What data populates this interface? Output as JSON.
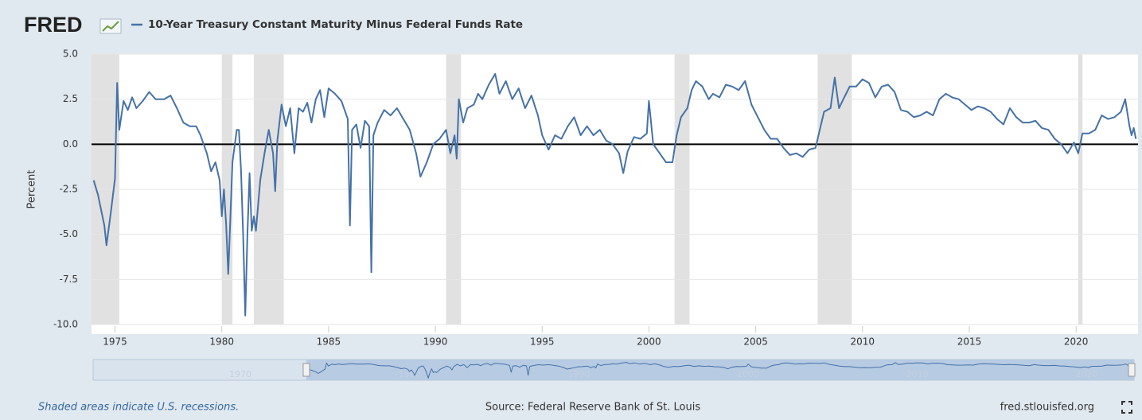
{
  "chart_data": {
    "type": "line",
    "brand": "FRED",
    "title": "10-Year Treasury Constant Maturity Minus Federal Funds Rate",
    "ylabel": "Percent",
    "note": "Shaded areas indicate U.S. recessions.",
    "source": "Source: Federal Reserve Bank of St. Louis",
    "site": "fred.stlouisfed.org",
    "xlim": [
      1973.9,
      2022.9
    ],
    "ylim": [
      -10,
      5
    ],
    "xticks": [
      1975,
      1980,
      1985,
      1990,
      1995,
      2000,
      2005,
      2010,
      2015,
      2020
    ],
    "yticks": [
      {
        "value": 5,
        "label": "5.0"
      },
      {
        "value": 2.5,
        "label": "2.5"
      },
      {
        "value": 0,
        "label": "0.0"
      },
      {
        "value": -2.5,
        "label": "-2.5"
      },
      {
        "value": -5,
        "label": "-5.0"
      },
      {
        "value": -7.5,
        "label": "-7.5"
      },
      {
        "value": -10,
        "label": "-10.0"
      }
    ],
    "grid": true,
    "zero_line": 0,
    "recessions": [
      [
        1973.9,
        1975.2
      ],
      [
        1980.0,
        1980.5
      ],
      [
        1981.5,
        1982.9
      ],
      [
        1990.5,
        1991.2
      ],
      [
        2001.2,
        2001.9
      ],
      [
        2007.9,
        2009.5
      ],
      [
        2020.1,
        2020.3
      ]
    ],
    "navigator": {
      "xlim": [
        1961.3,
        2022.8
      ],
      "xticks": [
        1970,
        1980,
        1990,
        2000,
        2010,
        2020
      ]
    },
    "series": [
      {
        "name": "10-Year Treasury Constant Maturity Minus Federal Funds Rate",
        "color": "#4572a7",
        "x": [
          1974.0,
          1974.2,
          1974.5,
          1974.6,
          1974.8,
          1975.0,
          1975.1,
          1975.2,
          1975.4,
          1975.6,
          1975.8,
          1976.0,
          1976.3,
          1976.6,
          1976.9,
          1977.3,
          1977.6,
          1977.9,
          1978.2,
          1978.5,
          1978.8,
          1979.0,
          1979.3,
          1979.5,
          1979.7,
          1979.9,
          1980.0,
          1980.1,
          1980.2,
          1980.3,
          1980.5,
          1980.7,
          1980.8,
          1980.9,
          1981.0,
          1981.1,
          1981.2,
          1981.3,
          1981.4,
          1981.5,
          1981.6,
          1981.8,
          1982.0,
          1982.2,
          1982.4,
          1982.5,
          1982.6,
          1982.8,
          1983.0,
          1983.2,
          1983.4,
          1983.6,
          1983.8,
          1984.0,
          1984.2,
          1984.4,
          1984.6,
          1984.8,
          1985.0,
          1985.3,
          1985.6,
          1985.9,
          1986.0,
          1986.1,
          1986.3,
          1986.5,
          1986.7,
          1986.9,
          1987.0,
          1987.1,
          1987.3,
          1987.6,
          1987.9,
          1988.2,
          1988.5,
          1988.8,
          1989.1,
          1989.3,
          1989.6,
          1989.9,
          1990.2,
          1990.5,
          1990.7,
          1990.9,
          1991.0,
          1991.1,
          1991.3,
          1991.5,
          1991.8,
          1992.0,
          1992.2,
          1992.5,
          1992.8,
          1993.0,
          1993.3,
          1993.6,
          1993.9,
          1994.2,
          1994.5,
          1994.8,
          1995.0,
          1995.3,
          1995.6,
          1995.9,
          1996.2,
          1996.5,
          1996.8,
          1997.1,
          1997.4,
          1997.7,
          1998.0,
          1998.3,
          1998.6,
          1998.8,
          1999.0,
          1999.3,
          1999.6,
          1999.9,
          2000.0,
          2000.2,
          2000.5,
          2000.8,
          2001.1,
          2001.3,
          2001.5,
          2001.8,
          2002.0,
          2002.2,
          2002.5,
          2002.8,
          2003.0,
          2003.3,
          2003.6,
          2003.9,
          2004.2,
          2004.5,
          2004.8,
          2005.1,
          2005.4,
          2005.7,
          2006.0,
          2006.3,
          2006.6,
          2006.9,
          2007.2,
          2007.5,
          2007.8,
          2008.0,
          2008.2,
          2008.5,
          2008.7,
          2008.9,
          2009.1,
          2009.4,
          2009.7,
          2010.0,
          2010.3,
          2010.6,
          2010.9,
          2011.2,
          2011.5,
          2011.8,
          2012.1,
          2012.4,
          2012.7,
          2013.0,
          2013.3,
          2013.6,
          2013.9,
          2014.2,
          2014.5,
          2014.8,
          2015.1,
          2015.4,
          2015.7,
          2016.0,
          2016.3,
          2016.6,
          2016.9,
          2017.2,
          2017.5,
          2017.8,
          2018.1,
          2018.4,
          2018.7,
          2019.0,
          2019.3,
          2019.6,
          2019.9,
          2020.1,
          2020.3,
          2020.6,
          2020.9,
          2021.2,
          2021.5,
          2021.8,
          2022.1,
          2022.3,
          2022.5,
          2022.6,
          2022.7,
          2022.8
        ],
        "values": [
          -2.0,
          -2.8,
          -4.5,
          -5.6,
          -3.8,
          -1.9,
          3.4,
          0.8,
          2.4,
          1.9,
          2.6,
          2.0,
          2.4,
          2.9,
          2.5,
          2.5,
          2.7,
          2.0,
          1.2,
          1.0,
          1.0,
          0.5,
          -0.5,
          -1.5,
          -1.0,
          -2.0,
          -4.0,
          -2.5,
          -4.4,
          -7.2,
          -1.0,
          0.8,
          0.8,
          -1.5,
          -5.0,
          -9.5,
          -5.0,
          -1.6,
          -4.8,
          -4.0,
          -4.8,
          -2.0,
          -0.5,
          0.8,
          -0.5,
          -2.6,
          0.2,
          2.2,
          1.0,
          2.0,
          -0.5,
          2.0,
          1.8,
          2.3,
          1.2,
          2.5,
          3.0,
          1.5,
          3.1,
          2.8,
          2.4,
          1.4,
          -4.5,
          0.8,
          1.1,
          -0.2,
          1.3,
          1.0,
          -7.1,
          0.5,
          1.2,
          1.9,
          1.6,
          2.0,
          1.4,
          0.8,
          -0.5,
          -1.8,
          -1.0,
          0.0,
          0.3,
          0.8,
          -0.5,
          0.5,
          -0.8,
          2.5,
          1.2,
          2.0,
          2.2,
          2.8,
          2.5,
          3.3,
          3.9,
          2.8,
          3.5,
          2.5,
          3.1,
          2.0,
          2.7,
          1.6,
          0.5,
          -0.3,
          0.5,
          0.3,
          1.0,
          1.5,
          0.5,
          1.0,
          0.5,
          0.8,
          0.2,
          0.0,
          -0.5,
          -1.6,
          -0.4,
          0.4,
          0.3,
          0.6,
          2.4,
          0.0,
          -0.5,
          -1.0,
          -1.0,
          0.5,
          1.5,
          2.0,
          3.0,
          3.5,
          3.2,
          2.5,
          2.8,
          2.6,
          3.3,
          3.2,
          3.0,
          3.5,
          2.2,
          1.5,
          0.8,
          0.3,
          0.3,
          -0.2,
          -0.6,
          -0.5,
          -0.7,
          -0.3,
          -0.2,
          0.8,
          1.8,
          2.0,
          3.7,
          2.0,
          2.5,
          3.2,
          3.2,
          3.6,
          3.4,
          2.6,
          3.2,
          3.3,
          2.9,
          1.9,
          1.8,
          1.5,
          1.6,
          1.8,
          1.6,
          2.5,
          2.8,
          2.6,
          2.5,
          2.2,
          1.9,
          2.1,
          2.0,
          1.8,
          1.4,
          1.1,
          2.0,
          1.5,
          1.2,
          1.2,
          1.3,
          0.9,
          0.8,
          0.3,
          0.0,
          -0.5,
          0.1,
          -0.5,
          0.6,
          0.6,
          0.8,
          1.6,
          1.4,
          1.5,
          1.8,
          2.5,
          1.0,
          0.5,
          0.9,
          0.3
        ]
      }
    ]
  }
}
